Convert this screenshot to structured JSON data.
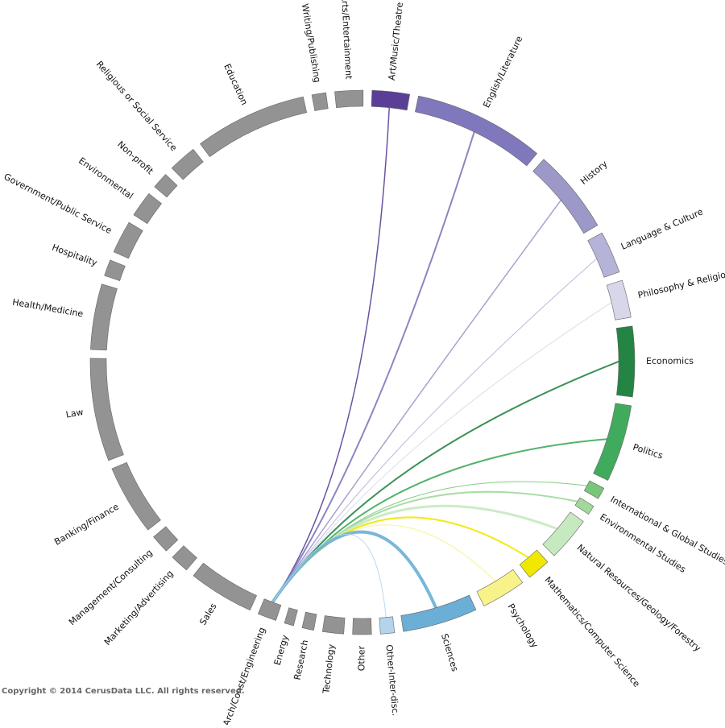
{
  "chart_data": {
    "type": "chord",
    "segments": [
      {
        "name": "Art/Music/Theatre",
        "color": "#5b3f96",
        "value": 8
      },
      {
        "name": "English/Literature",
        "color": "#8078bd",
        "value": 28
      },
      {
        "name": "History",
        "color": "#9c98c8",
        "value": 18
      },
      {
        "name": "Language & Culture",
        "color": "#b5b3d8",
        "value": 9
      },
      {
        "name": "Philosophy & Religion",
        "color": "#d8d7e9",
        "value": 8
      },
      {
        "name": "Economics",
        "color": "#238443",
        "value": 15
      },
      {
        "name": "Politics",
        "color": "#41ab5d",
        "value": 16.5
      },
      {
        "name": "International & Global Studies",
        "color": "#78c679",
        "value": 2.5
      },
      {
        "name": "Environmental Studies",
        "color": "#a1d99b",
        "value": 2
      },
      {
        "name": "Natural Resources/Geology/Forestry",
        "color": "#c7e9c0",
        "value": 9.5
      },
      {
        "name": "Mathematics/Computer Science",
        "color": "#f0e800",
        "value": 5
      },
      {
        "name": "Psychology",
        "color": "#f7f38a",
        "value": 9.5
      },
      {
        "name": "Sciences",
        "color": "#6baed6",
        "value": 16
      },
      {
        "name": "Other-Inter-disc.",
        "color": "#b5d4ea",
        "value": 3
      },
      {
        "name": "Other",
        "color": "#939393",
        "value": 4
      },
      {
        "name": "Technology",
        "color": "#939393",
        "value": 4.5
      },
      {
        "name": "Research",
        "color": "#939393",
        "value": 2.5
      },
      {
        "name": "Energy",
        "color": "#939393",
        "value": 2
      },
      {
        "name": "Arch/Const/Engineering",
        "color": "#939393",
        "value": 4
      },
      {
        "name": "Sales",
        "color": "#939393",
        "value": 14
      },
      {
        "name": "Marketing/Advertising",
        "color": "#939393",
        "value": 4
      },
      {
        "name": "Management/Consulting",
        "color": "#939393",
        "value": 4
      },
      {
        "name": "Banking/Finance",
        "color": "#939393",
        "value": 15
      },
      {
        "name": "Law",
        "color": "#939393",
        "value": 22
      },
      {
        "name": "Health/Medicine",
        "color": "#939393",
        "value": 14
      },
      {
        "name": "Hospitality",
        "color": "#939393",
        "value": 3.5
      },
      {
        "name": "Government/Public Service",
        "color": "#939393",
        "value": 7
      },
      {
        "name": "Environmental",
        "color": "#939393",
        "value": 5.5
      },
      {
        "name": "Non-profit",
        "color": "#939393",
        "value": 3.5
      },
      {
        "name": "Religious or Social Service",
        "color": "#939393",
        "value": 6
      },
      {
        "name": "Education",
        "color": "#939393",
        "value": 24
      },
      {
        "name": "Writing/Publishing",
        "color": "#939393",
        "value": 3
      },
      {
        "name": "Arts/Entertainment",
        "color": "#939393",
        "value": 6
      }
    ],
    "links": [
      {
        "source": 0,
        "target": 18,
        "value": 1.5
      },
      {
        "source": 1,
        "target": 18,
        "value": 2
      },
      {
        "source": 2,
        "target": 18,
        "value": 1.5
      },
      {
        "source": 3,
        "target": 18,
        "value": 1
      },
      {
        "source": 4,
        "target": 18,
        "value": 1
      },
      {
        "source": 5,
        "target": 18,
        "value": 2
      },
      {
        "source": 6,
        "target": 18,
        "value": 2
      },
      {
        "source": 7,
        "target": 18,
        "value": 1
      },
      {
        "source": 8,
        "target": 18,
        "value": 2
      },
      {
        "source": 9,
        "target": 18,
        "value": 3
      },
      {
        "source": 10,
        "target": 18,
        "value": 2
      },
      {
        "source": 11,
        "target": 18,
        "value": 1
      },
      {
        "source": 12,
        "target": 18,
        "value": 4
      },
      {
        "source": 13,
        "target": 18,
        "value": 1
      }
    ],
    "footer": "Copyright © 2014 CerusData LLC.  All rights reserved."
  }
}
